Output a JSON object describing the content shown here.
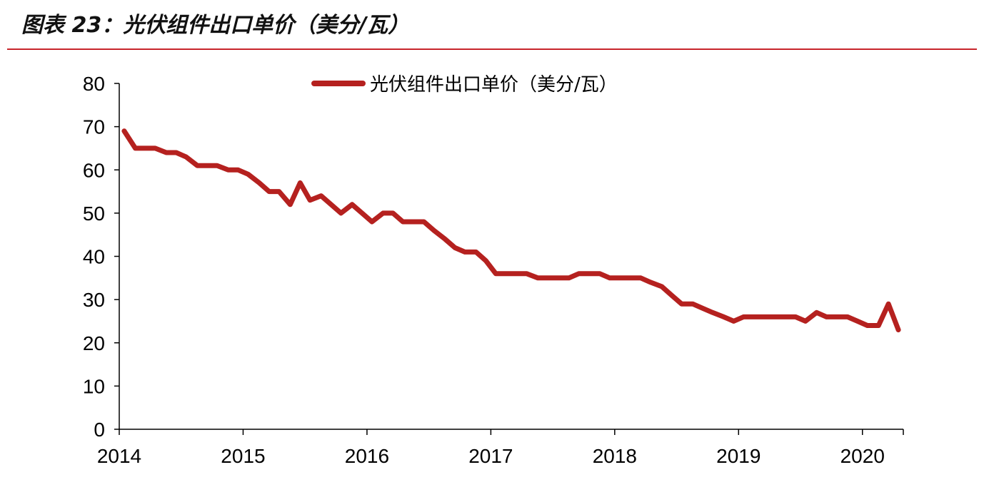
{
  "figure": {
    "title": "图表 23：光伏组件出口单价（美分/瓦）"
  },
  "chart_data": {
    "type": "line",
    "title": "",
    "xlabel": "",
    "ylabel": "",
    "ylim": [
      0,
      80
    ],
    "yticks": [
      "0",
      "10",
      "20",
      "30",
      "40",
      "50",
      "60",
      "70",
      "80"
    ],
    "xlim": [
      2014.0,
      2020.33
    ],
    "xticks": [
      "2014",
      "2015",
      "2016",
      "2017",
      "2018",
      "2019",
      "2020"
    ],
    "grid": false,
    "legend_position": "top-center",
    "series": [
      {
        "name": "光伏组件出口单价（美分/瓦）",
        "color": "#b5211f",
        "x": [
          2014.04,
          2014.13,
          2014.21,
          2014.29,
          2014.38,
          2014.46,
          2014.54,
          2014.63,
          2014.71,
          2014.79,
          2014.88,
          2014.96,
          2015.04,
          2015.13,
          2015.21,
          2015.29,
          2015.38,
          2015.46,
          2015.54,
          2015.63,
          2015.71,
          2015.79,
          2015.88,
          2015.96,
          2016.04,
          2016.13,
          2016.21,
          2016.29,
          2016.38,
          2016.46,
          2016.54,
          2016.63,
          2016.71,
          2016.79,
          2016.88,
          2016.96,
          2017.04,
          2017.13,
          2017.21,
          2017.29,
          2017.38,
          2017.46,
          2017.54,
          2017.63,
          2017.71,
          2017.79,
          2017.88,
          2017.96,
          2018.04,
          2018.13,
          2018.21,
          2018.29,
          2018.38,
          2018.46,
          2018.54,
          2018.63,
          2018.71,
          2018.79,
          2018.88,
          2018.96,
          2019.04,
          2019.13,
          2019.21,
          2019.29,
          2019.38,
          2019.46,
          2019.54,
          2019.63,
          2019.71,
          2019.79,
          2019.88,
          2019.96,
          2020.04,
          2020.13,
          2020.21,
          2020.29
        ],
        "values": [
          69,
          65,
          65,
          65,
          64,
          64,
          63,
          61,
          61,
          61,
          60,
          60,
          59,
          57,
          55,
          55,
          52,
          57,
          53,
          54,
          52,
          50,
          52,
          50,
          48,
          50,
          50,
          48,
          48,
          48,
          46,
          44,
          42,
          41,
          41,
          39,
          36,
          36,
          36,
          36,
          35,
          35,
          35,
          35,
          36,
          36,
          36,
          35,
          35,
          35,
          35,
          34,
          33,
          31,
          29,
          29,
          28,
          27,
          26,
          25,
          26,
          26,
          26,
          26,
          26,
          26,
          25,
          27,
          26,
          26,
          26,
          25,
          24,
          24,
          29,
          23
        ]
      }
    ]
  }
}
